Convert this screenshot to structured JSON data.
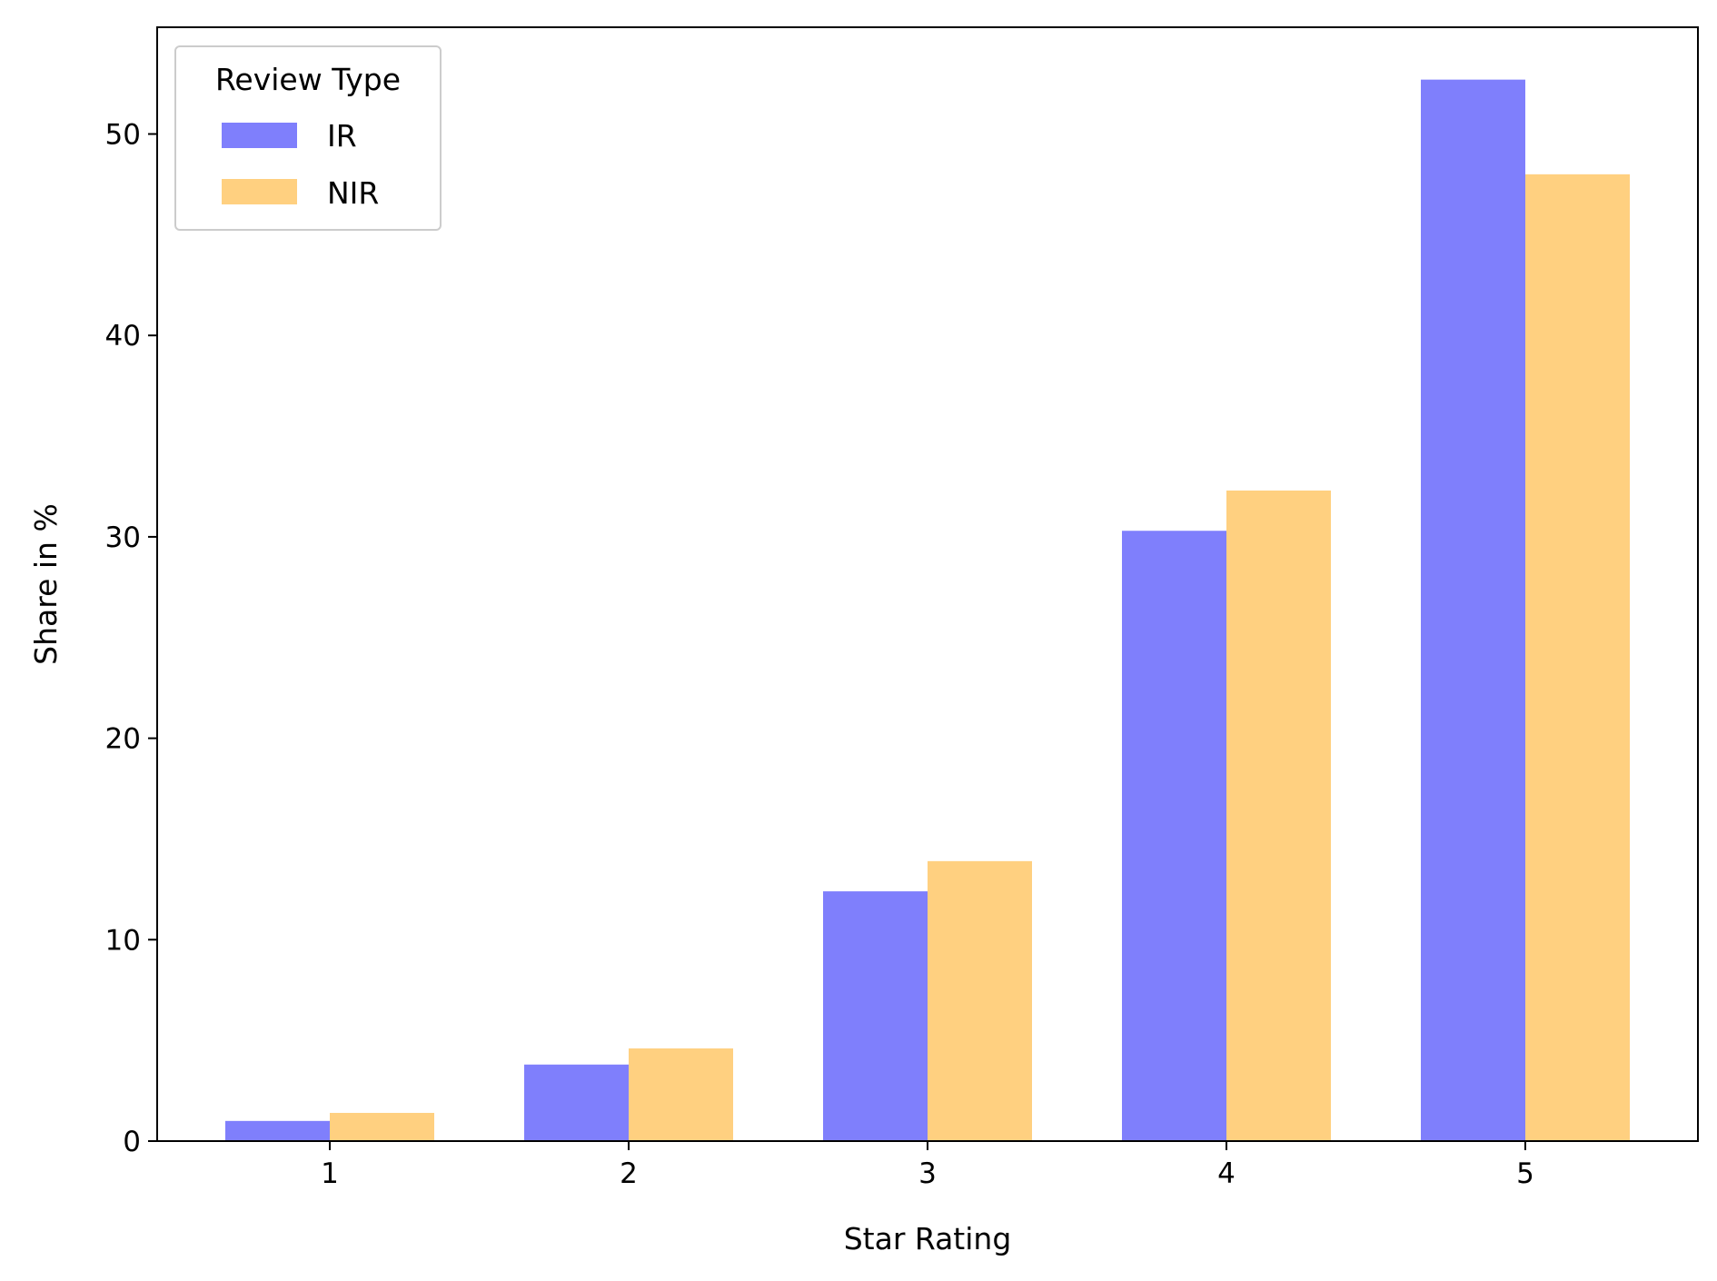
{
  "chart_data": {
    "type": "bar",
    "categories": [
      "1",
      "2",
      "3",
      "4",
      "5"
    ],
    "series": [
      {
        "name": "IR",
        "color": "#7f7ffc",
        "values": [
          1.0,
          3.8,
          12.4,
          30.3,
          52.7
        ]
      },
      {
        "name": "NIR",
        "color": "#ffd080",
        "values": [
          1.4,
          4.6,
          13.9,
          32.3,
          48.0
        ]
      }
    ],
    "xlabel": "Star Rating",
    "ylabel": "Share in %",
    "ylim": [
      0,
      55.3
    ],
    "yticks": [
      0,
      10,
      20,
      30,
      40,
      50
    ],
    "legend": {
      "title": "Review Type",
      "position": "top-left"
    },
    "grid": false
  }
}
